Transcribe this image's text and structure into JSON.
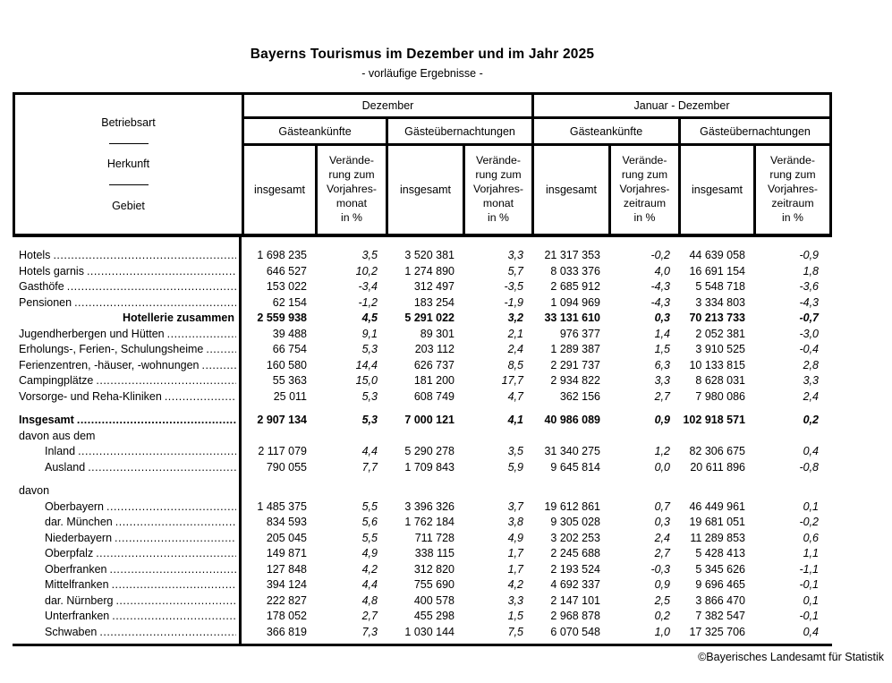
{
  "title": "Bayerns Tourismus im Dezember und im Jahr 2025",
  "subtitle": "- vorläufige Ergebnisse -",
  "footer_credit": "©Bayerisches Landesamt für Statistik",
  "header": {
    "stub": {
      "line1": "Betriebsart",
      "line2": "Herkunft",
      "line3": "Gebiet"
    },
    "insgesamt_label": "insgesamt",
    "groups": [
      {
        "label": "Dezember",
        "sub1": "Gästeankünfte",
        "sub2": "Gästeübernachtungen",
        "change_label": "Verände-\nrung zum\nVorjahres-\nmonat\nin %"
      },
      {
        "label": "Januar - Dezember",
        "sub1": "Gästeankünfte",
        "sub2": "Gästeübernachtungen",
        "change_label": "Verände-\nrung zum\nVorjahres-\nzeitraum\nin %"
      }
    ]
  },
  "rows": [
    {
      "type": "spacer",
      "h": 12
    },
    {
      "type": "data",
      "label": "Hotels",
      "indent": 0,
      "values": [
        "1 698 235",
        "3,5",
        "3 520 381",
        "3,3",
        "21 317 353",
        "-0,2",
        "44 639 058",
        "-0,9"
      ]
    },
    {
      "type": "data",
      "label": "Hotels garnis",
      "indent": 0,
      "values": [
        "646 527",
        "10,2",
        "1 274 890",
        "5,7",
        "8 033 376",
        "4,0",
        "16 691 154",
        "1,8"
      ]
    },
    {
      "type": "data",
      "label": "Gasthöfe",
      "indent": 0,
      "values": [
        "153 022",
        "-3,4",
        "312 497",
        "-3,5",
        "2 685 912",
        "-4,3",
        "5 548 718",
        "-3,6"
      ]
    },
    {
      "type": "data",
      "label": "Pensionen",
      "indent": 0,
      "values": [
        "62 154",
        "-1,2",
        "183 254",
        "-1,9",
        "1 094 969",
        "-4,3",
        "3 334 803",
        "-4,3"
      ]
    },
    {
      "type": "sum",
      "label": "Hotellerie zusammen",
      "values": [
        "2 559 938",
        "4,5",
        "5 291 022",
        "3,2",
        "33 131 610",
        "0,3",
        "70 213 733",
        "-0,7"
      ]
    },
    {
      "type": "data",
      "label": "Jugendherbergen und Hütten",
      "indent": 0,
      "values": [
        "39 488",
        "9,1",
        "89 301",
        "2,1",
        "976 377",
        "1,4",
        "2 052 381",
        "-3,0"
      ]
    },
    {
      "type": "data",
      "label": "Erholungs-, Ferien-, Schulungsheime",
      "indent": 0,
      "values": [
        "66 754",
        "5,3",
        "203 112",
        "2,4",
        "1 289 387",
        "1,5",
        "3 910 525",
        "-0,4"
      ]
    },
    {
      "type": "data",
      "label": "Ferienzentren, -häuser, -wohnungen",
      "indent": 0,
      "values": [
        "160 580",
        "14,4",
        "626 737",
        "8,5",
        "2 291 737",
        "6,3",
        "10 133 815",
        "2,8"
      ]
    },
    {
      "type": "data",
      "label": "Campingplätze",
      "indent": 0,
      "values": [
        "55 363",
        "15,0",
        "181 200",
        "17,7",
        "2 934 822",
        "3,3",
        "8 628 031",
        "3,3"
      ]
    },
    {
      "type": "data",
      "label": "Vorsorge- und Reha-Kliniken",
      "indent": 0,
      "values": [
        "25 011",
        "5,3",
        "608 749",
        "4,7",
        "362 156",
        "2,7",
        "7 980 086",
        "2,4"
      ]
    },
    {
      "type": "spacer",
      "h": 9
    },
    {
      "type": "total",
      "label": "Insgesamt",
      "values": [
        "2 907 134",
        "5,3",
        "7 000 121",
        "4,1",
        "40 986 089",
        "0,9",
        "102 918 571",
        "0,2"
      ]
    },
    {
      "type": "section",
      "label": "davon aus dem"
    },
    {
      "type": "data",
      "label": "Inland",
      "indent": 1,
      "values": [
        "2 117 079",
        "4,4",
        "5 290 278",
        "3,5",
        "31 340 275",
        "1,2",
        "82 306 675",
        "0,4"
      ]
    },
    {
      "type": "data",
      "label": "Ausland",
      "indent": 1,
      "values": [
        "790 055",
        "7,7",
        "1 709 843",
        "5,9",
        "9 645 814",
        "0,0",
        "20 611 896",
        "-0,8"
      ]
    },
    {
      "type": "spacer",
      "h": 9
    },
    {
      "type": "section",
      "label": "davon"
    },
    {
      "type": "data",
      "label": "Oberbayern",
      "indent": 1,
      "values": [
        "1 485 375",
        "5,5",
        "3 396 326",
        "3,7",
        "19 612 861",
        "0,7",
        "46 449 961",
        "0,1"
      ]
    },
    {
      "type": "data",
      "label": "dar. München",
      "indent": 1,
      "values": [
        "834 593",
        "5,6",
        "1 762 184",
        "3,8",
        "9 305 028",
        "0,3",
        "19 681 051",
        "-0,2"
      ]
    },
    {
      "type": "data",
      "label": "Niederbayern",
      "indent": 1,
      "values": [
        "205 045",
        "5,5",
        "711 728",
        "4,9",
        "3 202 253",
        "2,4",
        "11 289 853",
        "0,6"
      ]
    },
    {
      "type": "data",
      "label": "Oberpfalz",
      "indent": 1,
      "values": [
        "149 871",
        "4,9",
        "338 115",
        "1,7",
        "2 245 688",
        "2,7",
        "5 428 413",
        "1,1"
      ]
    },
    {
      "type": "data",
      "label": "Oberfranken",
      "indent": 1,
      "values": [
        "127 848",
        "4,2",
        "312 820",
        "1,7",
        "2 193 524",
        "-0,3",
        "5 345 626",
        "-1,1"
      ]
    },
    {
      "type": "data",
      "label": "Mittelfranken",
      "indent": 1,
      "values": [
        "394 124",
        "4,4",
        "755 690",
        "4,2",
        "4 692 337",
        "0,9",
        "9 696 465",
        "-0,1"
      ]
    },
    {
      "type": "data",
      "label": "dar. Nürnberg",
      "indent": 1,
      "values": [
        "222 827",
        "4,8",
        "400 578",
        "3,3",
        "2 147 101",
        "2,5",
        "3 866 470",
        "0,1"
      ]
    },
    {
      "type": "data",
      "label": "Unterfranken",
      "indent": 1,
      "values": [
        "178 052",
        "2,7",
        "455 298",
        "1,5",
        "2 968 878",
        "0,2",
        "7 382 547",
        "-0,1"
      ]
    },
    {
      "type": "data",
      "label": "Schwaben",
      "indent": 1,
      "values": [
        "366 819",
        "7,3",
        "1 030 144",
        "7,5",
        "6 070 548",
        "1,0",
        "17 325 706",
        "0,4"
      ]
    },
    {
      "type": "spacer",
      "h": 4
    }
  ]
}
